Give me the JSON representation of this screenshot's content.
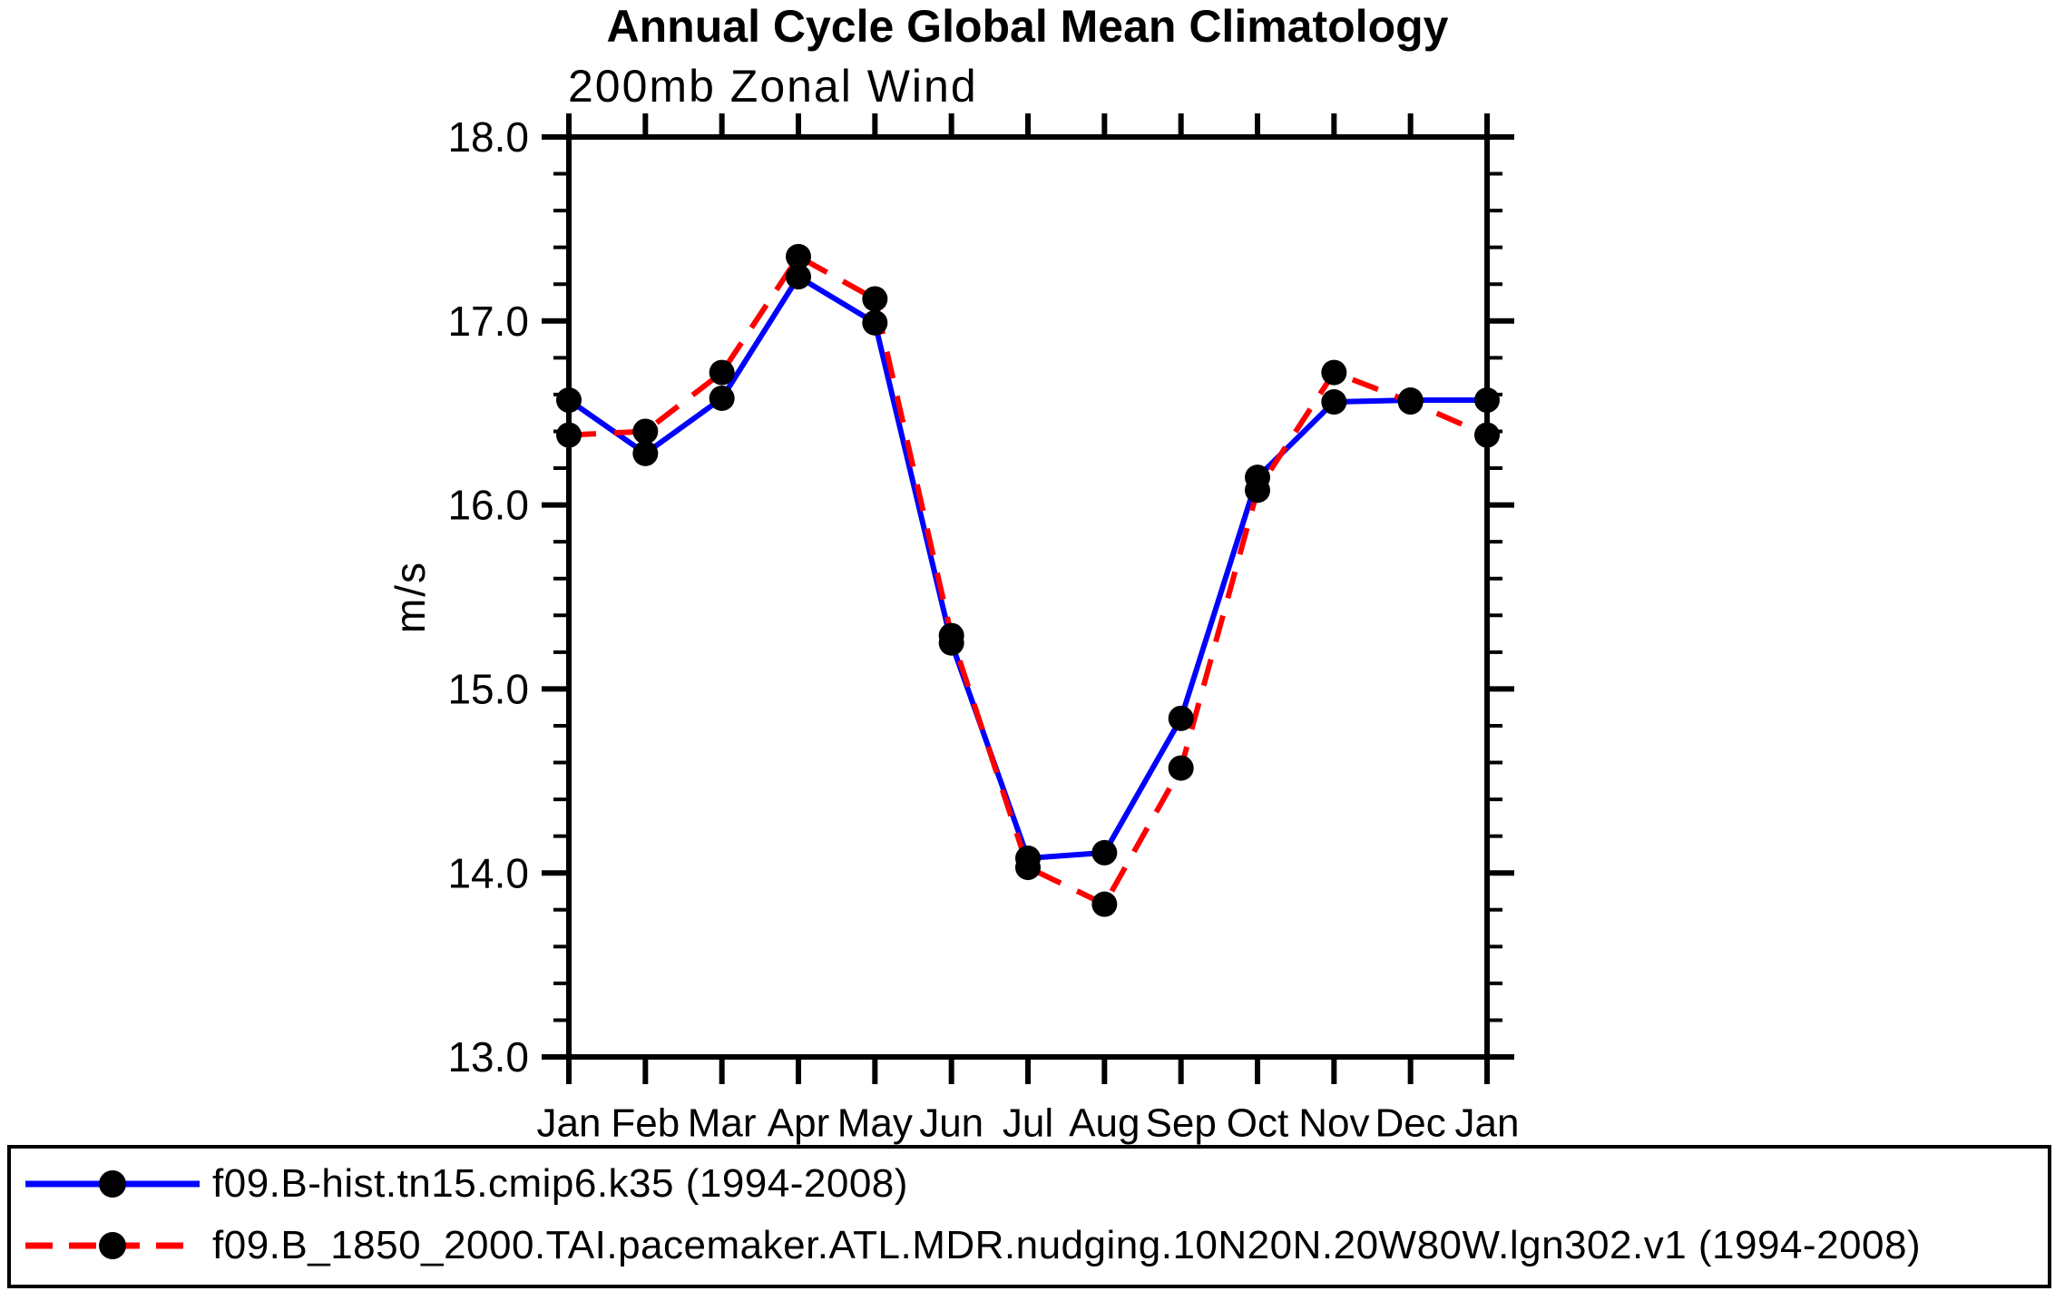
{
  "chart_data": {
    "type": "line",
    "title": "Annual Cycle Global Mean Climatology",
    "subtitle": "200mb Zonal Wind",
    "xlabel": "",
    "ylabel": "m/s",
    "ylim": [
      13.0,
      18.0
    ],
    "ytick_step": 1.0,
    "yminor_step": 0.2,
    "ytick_labels": [
      "13.0",
      "14.0",
      "15.0",
      "16.0",
      "17.0",
      "18.0"
    ],
    "categories": [
      "Jan",
      "Feb",
      "Mar",
      "Apr",
      "May",
      "Jun",
      "Jul",
      "Aug",
      "Sep",
      "Oct",
      "Nov",
      "Dec",
      "Jan"
    ],
    "grid": "off",
    "legend_position": "bottom",
    "axis_color": "#000000",
    "series": [
      {
        "name": "f09.B-hist.tn15.cmip6.k35 (1994-2008)",
        "color": "#0000ff",
        "line_style": "solid",
        "marker": "circle",
        "marker_color": "#000000",
        "values": [
          16.57,
          16.28,
          16.58,
          17.24,
          16.99,
          15.25,
          14.08,
          14.11,
          14.84,
          16.15,
          16.56,
          16.57,
          16.57
        ]
      },
      {
        "name": "f09.B_1850_2000.TAI.pacemaker.ATL.MDR.nudging.10N20N.20W80W.lgn302.v1 (1994-2008)",
        "color": "#ff0000",
        "line_style": "dashed",
        "marker": "circle",
        "marker_color": "#000000",
        "values": [
          16.38,
          16.4,
          16.72,
          17.35,
          17.12,
          15.29,
          14.03,
          13.83,
          14.57,
          16.08,
          16.72,
          16.56,
          16.38
        ]
      }
    ]
  }
}
